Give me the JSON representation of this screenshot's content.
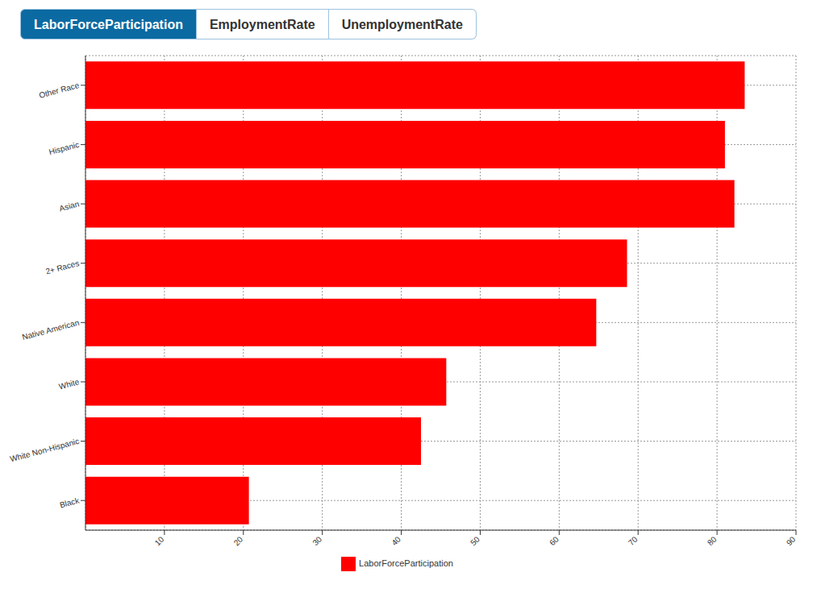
{
  "tabs": [
    "LaborForceParticipation",
    "EmploymentRate",
    "UnemploymentRate"
  ],
  "chart_data": {
    "type": "bar",
    "orientation": "horizontal",
    "categories": [
      "Other Race",
      "Hispanic",
      "Asian",
      "2+ Races",
      "Native American",
      "White",
      "White Non-Hispanic",
      "Black"
    ],
    "series": [
      {
        "name": "LaborForceParticipation",
        "color": "#ff0000",
        "values": [
          83.5,
          81,
          82.2,
          68.6,
          64.7,
          45.7,
          42.5,
          20.7
        ]
      }
    ],
    "xlim": [
      0,
      90
    ],
    "xticks": [
      10,
      20,
      30,
      40,
      50,
      60,
      70,
      80,
      90
    ],
    "grid": true,
    "legend": "bottom"
  }
}
